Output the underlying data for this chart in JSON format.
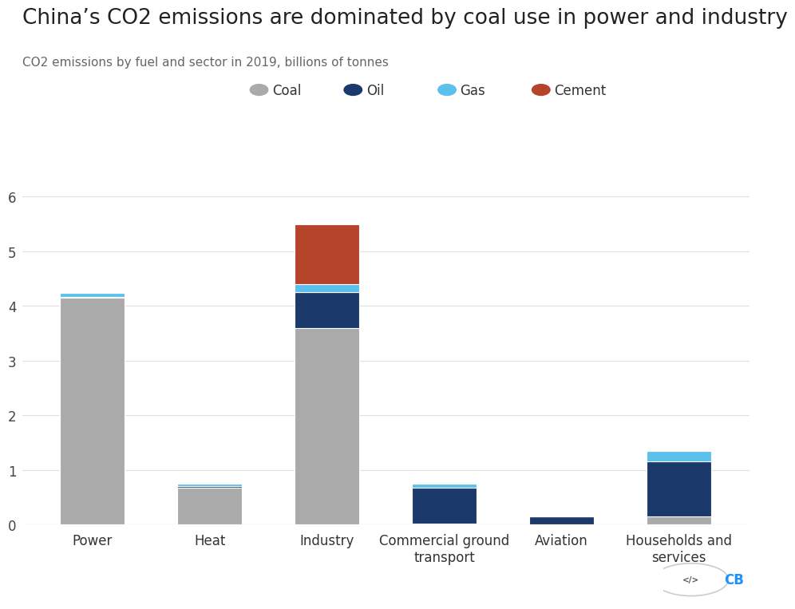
{
  "title": "China’s CO2 emissions are dominated by coal use in power and industry",
  "subtitle": "CO2 emissions by fuel and sector in 2019, billions of tonnes",
  "categories": [
    "Power",
    "Heat",
    "Industry",
    "Commercial ground\ntransport",
    "Aviation",
    "Households and\nservices"
  ],
  "fuels": [
    "Coal",
    "Oil",
    "Gas",
    "Cement"
  ],
  "colors": {
    "Coal": "#aaaaaa",
    "Oil": "#1b3a6b",
    "Gas": "#5bc0eb",
    "Cement": "#b5442a"
  },
  "data": {
    "Coal": [
      4.15,
      0.68,
      3.6,
      0.02,
      0.0,
      0.15
    ],
    "Oil": [
      0.02,
      0.03,
      0.65,
      0.65,
      0.15,
      1.0
    ],
    "Gas": [
      0.07,
      0.04,
      0.15,
      0.07,
      0.0,
      0.2
    ],
    "Cement": [
      0.0,
      0.0,
      1.1,
      0.0,
      0.0,
      0.0
    ]
  },
  "ylim": [
    0,
    6.5
  ],
  "yticks": [
    0,
    1,
    2,
    3,
    4,
    5,
    6
  ],
  "background_color": "#ffffff",
  "grid_color": "#e0e0e0",
  "title_fontsize": 19,
  "subtitle_fontsize": 11,
  "legend_fontsize": 12,
  "tick_fontsize": 12,
  "bar_width": 0.55,
  "bar_edge_color": "#ffffff",
  "bar_linewidth": 0.8
}
